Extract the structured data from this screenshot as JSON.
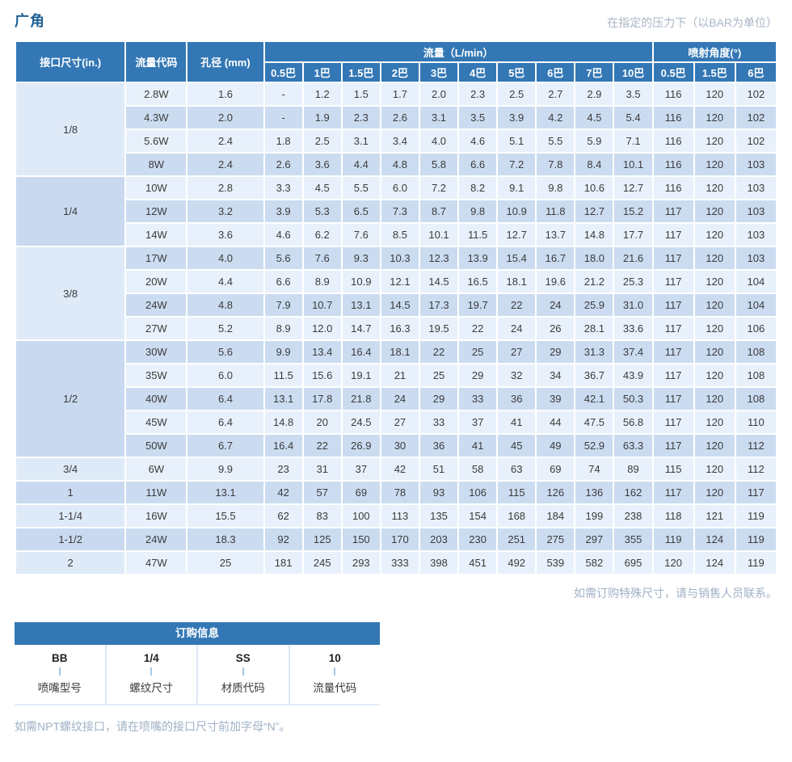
{
  "page": {
    "title": "广角",
    "pressure_unit_note": "在指定的压力下（以BAR为单位）",
    "special_size_note": "如需订购特殊尺寸，请与销售人员联系。",
    "npt_note": "如需NPT螺纹接口，请在喷嘴的接口尺寸前加字母“N”。"
  },
  "colors": {
    "header_blue": "#3377b5",
    "row_light": "#e8f1fb",
    "row_dark": "#cbdcf1",
    "group_light": "#dfeaf8",
    "group_dark": "#c9daf0",
    "title_blue": "#1e5f95",
    "note_top": "#a9b6c5",
    "note_gray_blue": "#9fb1c6"
  },
  "table": {
    "headers": {
      "size": "接口尺寸(in.)",
      "code": "流量代码",
      "orifice": "孔径 (mm)",
      "flow_group": "流量（L/min）",
      "angle_group": "喷射角度(°)",
      "flow_pressures": [
        "0.5巴",
        "1巴",
        "1.5巴",
        "2巴",
        "3巴",
        "4巴",
        "5巴",
        "6巴",
        "7巴",
        "10巴"
      ],
      "angle_pressures": [
        "0.5巴",
        "1.5巴",
        "6巴"
      ]
    },
    "groups": [
      {
        "size": "1/8",
        "rows": [
          {
            "code": "2.8W",
            "orifice": "1.6",
            "flows": [
              "-",
              "1.2",
              "1.5",
              "1.7",
              "2.0",
              "2.3",
              "2.5",
              "2.7",
              "2.9",
              "3.5"
            ],
            "angles": [
              "116",
              "120",
              "102"
            ]
          },
          {
            "code": "4.3W",
            "orifice": "2.0",
            "flows": [
              "-",
              "1.9",
              "2.3",
              "2.6",
              "3.1",
              "3.5",
              "3.9",
              "4.2",
              "4.5",
              "5.4"
            ],
            "angles": [
              "116",
              "120",
              "102"
            ]
          },
          {
            "code": "5.6W",
            "orifice": "2.4",
            "flows": [
              "1.8",
              "2.5",
              "3.1",
              "3.4",
              "4.0",
              "4.6",
              "5.1",
              "5.5",
              "5.9",
              "7.1"
            ],
            "angles": [
              "116",
              "120",
              "102"
            ]
          },
          {
            "code": "8W",
            "orifice": "2.4",
            "flows": [
              "2.6",
              "3.6",
              "4.4",
              "4.8",
              "5.8",
              "6.6",
              "7.2",
              "7.8",
              "8.4",
              "10.1"
            ],
            "angles": [
              "116",
              "120",
              "103"
            ]
          }
        ]
      },
      {
        "size": "1/4",
        "rows": [
          {
            "code": "10W",
            "orifice": "2.8",
            "flows": [
              "3.3",
              "4.5",
              "5.5",
              "6.0",
              "7.2",
              "8.2",
              "9.1",
              "9.8",
              "10.6",
              "12.7"
            ],
            "angles": [
              "116",
              "120",
              "103"
            ]
          },
          {
            "code": "12W",
            "orifice": "3.2",
            "flows": [
              "3.9",
              "5.3",
              "6.5",
              "7.3",
              "8.7",
              "9.8",
              "10.9",
              "11.8",
              "12.7",
              "15.2"
            ],
            "angles": [
              "117",
              "120",
              "103"
            ]
          },
          {
            "code": "14W",
            "orifice": "3.6",
            "flows": [
              "4.6",
              "6.2",
              "7.6",
              "8.5",
              "10.1",
              "11.5",
              "12.7",
              "13.7",
              "14.8",
              "17.7"
            ],
            "angles": [
              "117",
              "120",
              "103"
            ]
          }
        ]
      },
      {
        "size": "3/8",
        "rows": [
          {
            "code": "17W",
            "orifice": "4.0",
            "flows": [
              "5.6",
              "7.6",
              "9.3",
              "10.3",
              "12.3",
              "13.9",
              "15.4",
              "16.7",
              "18.0",
              "21.6"
            ],
            "angles": [
              "117",
              "120",
              "103"
            ]
          },
          {
            "code": "20W",
            "orifice": "4.4",
            "flows": [
              "6.6",
              "8.9",
              "10.9",
              "12.1",
              "14.5",
              "16.5",
              "18.1",
              "19.6",
              "21.2",
              "25.3"
            ],
            "angles": [
              "117",
              "120",
              "104"
            ]
          },
          {
            "code": "24W",
            "orifice": "4.8",
            "flows": [
              "7.9",
              "10.7",
              "13.1",
              "14.5",
              "17.3",
              "19.7",
              "22",
              "24",
              "25.9",
              "31.0"
            ],
            "angles": [
              "117",
              "120",
              "104"
            ]
          },
          {
            "code": "27W",
            "orifice": "5.2",
            "flows": [
              "8.9",
              "12.0",
              "14.7",
              "16.3",
              "19.5",
              "22",
              "24",
              "26",
              "28.1",
              "33.6"
            ],
            "angles": [
              "117",
              "120",
              "106"
            ]
          }
        ]
      },
      {
        "size": "1/2",
        "rows": [
          {
            "code": "30W",
            "orifice": "5.6",
            "flows": [
              "9.9",
              "13.4",
              "16.4",
              "18.1",
              "22",
              "25",
              "27",
              "29",
              "31.3",
              "37.4"
            ],
            "angles": [
              "117",
              "120",
              "108"
            ]
          },
          {
            "code": "35W",
            "orifice": "6.0",
            "flows": [
              "11.5",
              "15.6",
              "19.1",
              "21",
              "25",
              "29",
              "32",
              "34",
              "36.7",
              "43.9"
            ],
            "angles": [
              "117",
              "120",
              "108"
            ]
          },
          {
            "code": "40W",
            "orifice": "6.4",
            "flows": [
              "13.1",
              "17.8",
              "21.8",
              "24",
              "29",
              "33",
              "36",
              "39",
              "42.1",
              "50.3"
            ],
            "angles": [
              "117",
              "120",
              "108"
            ]
          },
          {
            "code": "45W",
            "orifice": "6.4",
            "flows": [
              "14.8",
              "20",
              "24.5",
              "27",
              "33",
              "37",
              "41",
              "44",
              "47.5",
              "56.8"
            ],
            "angles": [
              "117",
              "120",
              "110"
            ]
          },
          {
            "code": "50W",
            "orifice": "6.7",
            "flows": [
              "16.4",
              "22",
              "26.9",
              "30",
              "36",
              "41",
              "45",
              "49",
              "52.9",
              "63.3"
            ],
            "angles": [
              "117",
              "120",
              "112"
            ]
          }
        ]
      },
      {
        "size": "3/4",
        "rows": [
          {
            "code": "6W",
            "orifice": "9.9",
            "flows": [
              "23",
              "31",
              "37",
              "42",
              "51",
              "58",
              "63",
              "69",
              "74",
              "89"
            ],
            "angles": [
              "115",
              "120",
              "112"
            ]
          }
        ]
      },
      {
        "size": "1",
        "rows": [
          {
            "code": "11W",
            "orifice": "13.1",
            "flows": [
              "42",
              "57",
              "69",
              "78",
              "93",
              "106",
              "115",
              "126",
              "136",
              "162"
            ],
            "angles": [
              "117",
              "120",
              "117"
            ]
          }
        ]
      },
      {
        "size": "1-1/4",
        "rows": [
          {
            "code": "16W",
            "orifice": "15.5",
            "flows": [
              "62",
              "83",
              "100",
              "113",
              "135",
              "154",
              "168",
              "184",
              "199",
              "238"
            ],
            "angles": [
              "118",
              "121",
              "119"
            ]
          }
        ]
      },
      {
        "size": "1-1/2",
        "rows": [
          {
            "code": "24W",
            "orifice": "18.3",
            "flows": [
              "92",
              "125",
              "150",
              "170",
              "203",
              "230",
              "251",
              "275",
              "297",
              "355"
            ],
            "angles": [
              "119",
              "124",
              "119"
            ]
          }
        ]
      },
      {
        "size": "2",
        "rows": [
          {
            "code": "47W",
            "orifice": "25",
            "flows": [
              "181",
              "245",
              "293",
              "333",
              "398",
              "451",
              "492",
              "539",
              "582",
              "695"
            ],
            "angles": [
              "120",
              "124",
              "119"
            ]
          }
        ]
      }
    ]
  },
  "ordering": {
    "title": "订购信息",
    "items": [
      {
        "code": "BB",
        "label": "喷嘴型号"
      },
      {
        "code": "1/4",
        "label": "螺纹尺寸"
      },
      {
        "code": "SS",
        "label": "材质代码"
      },
      {
        "code": "10",
        "label": "流量代码"
      }
    ]
  }
}
